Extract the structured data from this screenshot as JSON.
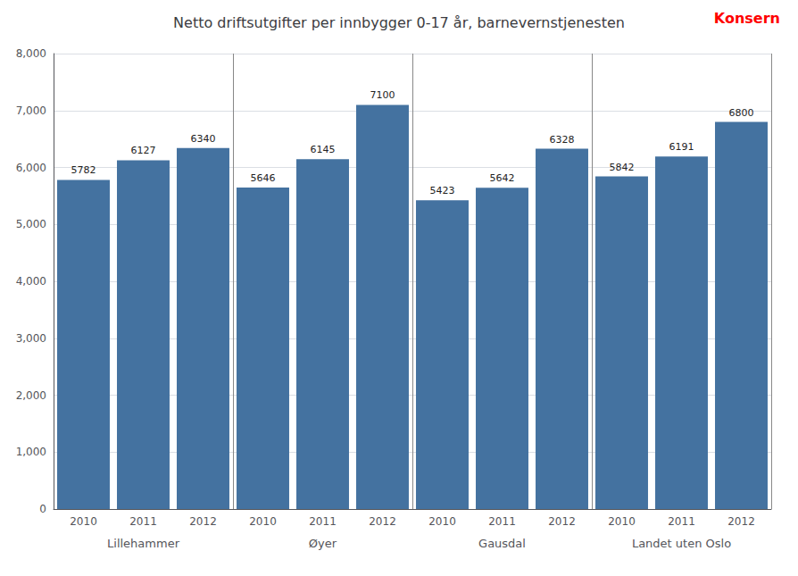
{
  "chart_data": {
    "type": "bar",
    "title": "Netto driftsutgifter per innbygger 0-17 år, barnevernstjenesten",
    "categories": [
      "2010",
      "2011",
      "2012",
      "2010",
      "2011",
      "2012",
      "2010",
      "2011",
      "2012",
      "2010",
      "2011",
      "2012"
    ],
    "groups": [
      "Lillehammer",
      "Øyer",
      "Gausdal",
      "Landet uten Oslo"
    ],
    "values": [
      5782,
      6127,
      6340,
      5646,
      6145,
      7100,
      5423,
      5642,
      6328,
      5842,
      6191,
      6800
    ],
    "color": "#4472a0",
    "ylim": [
      0,
      8000
    ],
    "yticks": [
      0,
      1000,
      2000,
      3000,
      4000,
      5000,
      6000,
      7000,
      8000
    ],
    "grid": true,
    "data_labels": true,
    "annotations": [
      {
        "text": "Konsern",
        "color": "#ff0000"
      }
    ]
  }
}
